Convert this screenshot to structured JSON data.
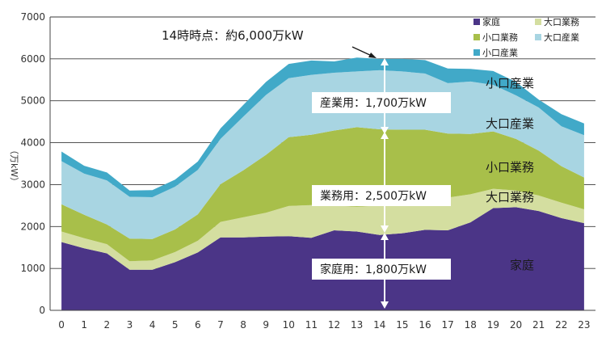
{
  "chart_data": {
    "type": "area",
    "stacked": true,
    "ylabel": "（万kW）",
    "ylim": [
      0,
      7000
    ],
    "yticks": [
      0,
      1000,
      2000,
      3000,
      4000,
      5000,
      6000,
      7000
    ],
    "x": [
      0,
      1,
      2,
      3,
      4,
      5,
      6,
      7,
      8,
      9,
      10,
      11,
      12,
      13,
      14,
      15,
      16,
      17,
      18,
      19,
      20,
      21,
      22,
      23
    ],
    "grid": true,
    "legend_position": "top-right",
    "series": [
      {
        "name": "家庭",
        "color": "#4b3587",
        "values": [
          1630,
          1480,
          1360,
          970,
          970,
          1150,
          1380,
          1740,
          1740,
          1760,
          1770,
          1730,
          1910,
          1880,
          1800,
          1840,
          1920,
          1910,
          2100,
          2440,
          2460,
          2370,
          2200,
          2080
        ]
      },
      {
        "name": "大口業務",
        "color": "#d4dea0",
        "values": [
          250,
          240,
          220,
          200,
          220,
          240,
          280,
          370,
          480,
          570,
          720,
          780,
          590,
          590,
          700,
          680,
          640,
          780,
          670,
          460,
          400,
          370,
          370,
          330
        ]
      },
      {
        "name": "小口業務",
        "color": "#a8bf4a",
        "values": [
          650,
          560,
          470,
          540,
          510,
          540,
          630,
          900,
          1120,
          1380,
          1640,
          1680,
          1790,
          1900,
          1820,
          1790,
          1750,
          1530,
          1440,
          1370,
          1230,
          1070,
          870,
          760
        ]
      },
      {
        "name": "大口産業",
        "color": "#a8d5e2",
        "values": [
          1030,
          980,
          1050,
          1000,
          1000,
          1020,
          1060,
          1080,
          1280,
          1430,
          1410,
          1430,
          1380,
          1330,
          1410,
          1390,
          1340,
          1200,
          1250,
          1110,
          1040,
          1030,
          950,
          1010
        ]
      },
      {
        "name": "小口産業",
        "color": "#41a9c8",
        "values": [
          230,
          190,
          190,
          150,
          170,
          170,
          200,
          250,
          280,
          310,
          340,
          340,
          270,
          330,
          270,
          300,
          320,
          350,
          300,
          330,
          320,
          190,
          290,
          280
        ]
      }
    ],
    "legend": [
      "家庭",
      "大口業務",
      "小口業務",
      "大口産業",
      "小口産業"
    ],
    "annotations": {
      "peak": "14時時点：約6,000万kW",
      "sector_industry": "産業用：1,700万kW",
      "sector_business": "業務用：2,500万kW",
      "sector_home": "家庭用：1,800万kW"
    },
    "area_labels": [
      "小口産業",
      "大口産業",
      "小口業務",
      "大口業務",
      "家庭"
    ]
  }
}
